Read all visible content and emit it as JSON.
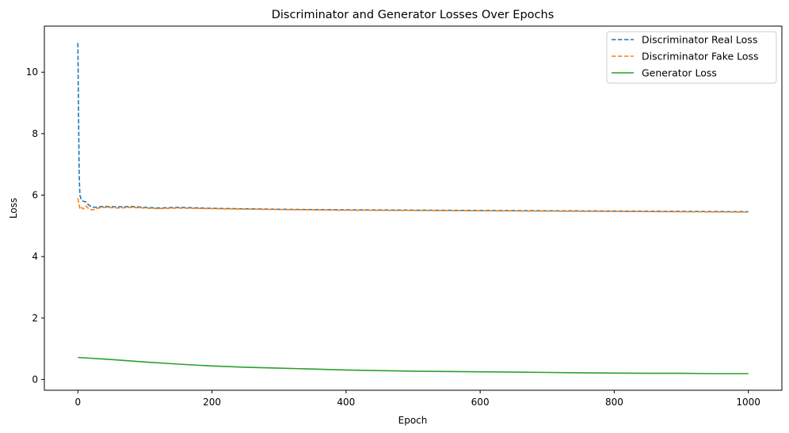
{
  "chart_data": {
    "type": "line",
    "title": "Discriminator and Generator Losses Over Epochs",
    "xlabel": "Epoch",
    "ylabel": "Loss",
    "xlim": [
      -50,
      1050
    ],
    "ylim": [
      -0.35,
      11.5
    ],
    "xticks": [
      0,
      200,
      400,
      600,
      800,
      1000
    ],
    "yticks": [
      0,
      2,
      4,
      6,
      8,
      10
    ],
    "grid": false,
    "legend_position": "top-right",
    "series": [
      {
        "name": "Discriminator Real Loss",
        "color": "#1f77b4",
        "dash": "dashed",
        "x": [
          0,
          1,
          2,
          3,
          5,
          8,
          12,
          15,
          20,
          25,
          30,
          40,
          60,
          80,
          100,
          120,
          150,
          200,
          300,
          400,
          500,
          600,
          700,
          800,
          900,
          1000
        ],
        "y": [
          10.95,
          8.5,
          6.6,
          6.0,
          5.85,
          5.8,
          5.78,
          5.7,
          5.62,
          5.6,
          5.62,
          5.63,
          5.62,
          5.63,
          5.6,
          5.58,
          5.6,
          5.57,
          5.54,
          5.52,
          5.51,
          5.5,
          5.49,
          5.48,
          5.47,
          5.46
        ]
      },
      {
        "name": "Discriminator Fake Loss",
        "color": "#ff7f0e",
        "dash": "dashed",
        "x": [
          0,
          3,
          5,
          8,
          12,
          15,
          20,
          25,
          30,
          40,
          60,
          80,
          100,
          120,
          150,
          200,
          300,
          400,
          500,
          600,
          700,
          800,
          900,
          1000
        ],
        "y": [
          5.9,
          5.55,
          5.6,
          5.55,
          5.65,
          5.58,
          5.52,
          5.53,
          5.58,
          5.6,
          5.58,
          5.6,
          5.58,
          5.56,
          5.58,
          5.56,
          5.53,
          5.51,
          5.5,
          5.49,
          5.48,
          5.47,
          5.46,
          5.45
        ]
      },
      {
        "name": "Generator Loss",
        "color": "#2ca02c",
        "dash": "solid",
        "x": [
          0,
          50,
          100,
          150,
          200,
          250,
          300,
          350,
          400,
          450,
          500,
          550,
          600,
          650,
          700,
          750,
          800,
          850,
          900,
          950,
          1000
        ],
        "y": [
          0.72,
          0.65,
          0.57,
          0.5,
          0.44,
          0.4,
          0.37,
          0.34,
          0.31,
          0.29,
          0.27,
          0.26,
          0.25,
          0.24,
          0.23,
          0.22,
          0.21,
          0.2,
          0.2,
          0.19,
          0.19
        ]
      }
    ]
  }
}
